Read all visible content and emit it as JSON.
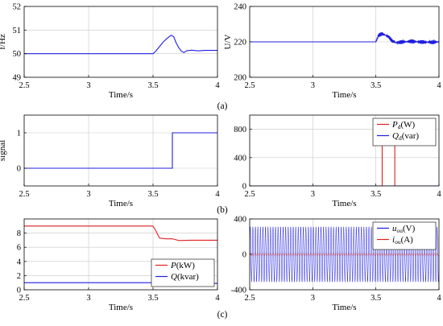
{
  "figure": {
    "subfig_labels": [
      "(a)",
      "(b)",
      "(c)"
    ]
  },
  "chart_data": [
    {
      "id": "a-left",
      "type": "line",
      "xlabel": "Time/s",
      "ylabel": "f/Hz",
      "xlim": [
        2.5,
        4
      ],
      "ylim": [
        49,
        52
      ],
      "xticks": [
        2.5,
        3,
        3.5,
        4
      ],
      "xtick_labels": [
        "2.5",
        "3",
        "3.5",
        "4"
      ],
      "yticks": [
        49,
        50,
        51,
        52
      ],
      "ytick_labels": [
        "49",
        "50",
        "51",
        "52"
      ],
      "grid": true,
      "legend": null,
      "series": [
        {
          "color": "#1f1fe0",
          "x": [
            2.5,
            3.0,
            3.5,
            3.52,
            3.55,
            3.58,
            3.61,
            3.64,
            3.66,
            3.68,
            3.7,
            3.72,
            3.74,
            3.76,
            3.8,
            3.85,
            3.9,
            4.0
          ],
          "y": [
            50.0,
            50.0,
            50.0,
            50.1,
            50.3,
            50.5,
            50.65,
            50.78,
            50.72,
            50.45,
            50.25,
            50.1,
            50.05,
            50.12,
            50.15,
            50.12,
            50.14,
            50.14
          ]
        }
      ]
    },
    {
      "id": "a-right",
      "type": "line",
      "xlabel": "Time/s",
      "ylabel": "U/V",
      "xlim": [
        2.5,
        4
      ],
      "ylim": [
        200,
        240
      ],
      "xticks": [
        2.5,
        3,
        3.5,
        4
      ],
      "xtick_labels": [
        "2.5",
        "3",
        "3.5",
        "4"
      ],
      "yticks": [
        200,
        220,
        240
      ],
      "ytick_labels": [
        "200",
        "220",
        "240"
      ],
      "grid": true,
      "legend": null,
      "series": [
        {
          "color": "#1f1fe0",
          "x": [
            2.5,
            3.0,
            3.5,
            3.52,
            3.55,
            3.6,
            3.63,
            3.66,
            3.7,
            3.8,
            3.9,
            4.0
          ],
          "y": [
            220,
            220,
            220,
            223.5,
            224.5,
            223,
            220.5,
            219.5,
            220,
            220.2,
            219.8,
            220
          ],
          "noise": 0.6
        }
      ]
    },
    {
      "id": "b-left",
      "type": "line",
      "xlabel": "Time/s",
      "ylabel": "signal",
      "xlim": [
        2.5,
        4
      ],
      "ylim": [
        -0.5,
        1.5
      ],
      "xticks": [
        2.5,
        3,
        3.5,
        4
      ],
      "xtick_labels": [
        "2.5",
        "3",
        "3.5",
        "4"
      ],
      "yticks": [
        0,
        1
      ],
      "ytick_labels": [
        "0",
        "1"
      ],
      "grid": true,
      "legend": null,
      "series": [
        {
          "color": "#1f1fe0",
          "x": [
            2.5,
            3.65,
            3.65,
            4.0
          ],
          "y": [
            0,
            0,
            1,
            1
          ]
        }
      ]
    },
    {
      "id": "b-right",
      "type": "line",
      "xlabel": "Time/s",
      "ylabel": "",
      "xlim": [
        2.5,
        4
      ],
      "ylim": [
        0,
        1000
      ],
      "xticks": [
        2.5,
        3,
        3.5,
        4
      ],
      "xtick_labels": [
        "2.5",
        "3",
        "3.5",
        "4"
      ],
      "yticks": [
        0,
        400,
        800
      ],
      "ytick_labels": [
        "0",
        "400",
        "800"
      ],
      "grid": true,
      "legend": {
        "position": "top-right",
        "entries": [
          {
            "label_main": "P",
            "label_sub": "d",
            "label_unit": "(W)",
            "color": "#e01f1f"
          },
          {
            "label_main": "Q",
            "label_sub": "d",
            "label_unit": "(var)",
            "color": "#1f1fe0"
          }
        ]
      },
      "series": [
        {
          "color": "#e01f1f",
          "x": [
            2.5,
            3.55,
            3.55,
            3.65,
            3.65,
            4.0
          ],
          "y": [
            0,
            0,
            800,
            800,
            0,
            0
          ]
        },
        {
          "color": "#1f1fe0",
          "x": [
            2.5,
            4.0
          ],
          "y": [
            0,
            0
          ]
        }
      ]
    },
    {
      "id": "c-left",
      "type": "line",
      "xlabel": "Time/s",
      "ylabel": "",
      "xlim": [
        2.5,
        4
      ],
      "ylim": [
        0,
        10
      ],
      "xticks": [
        2.5,
        3,
        3.5,
        4
      ],
      "xtick_labels": [
        "2.5",
        "3",
        "3.5",
        "4"
      ],
      "yticks": [
        0,
        2,
        4,
        6,
        8
      ],
      "ytick_labels": [
        "0",
        "2",
        "4",
        "6",
        "8"
      ],
      "grid": true,
      "legend": {
        "position": "bottom-right",
        "entries": [
          {
            "label_main": "P",
            "label_sub": "",
            "label_unit": "(kW)",
            "color": "#e01f1f"
          },
          {
            "label_main": "Q",
            "label_sub": "",
            "label_unit": "(kvar)",
            "color": "#1f1fe0"
          }
        ]
      },
      "series": [
        {
          "color": "#e01f1f",
          "x": [
            2.5,
            3.0,
            3.5,
            3.52,
            3.55,
            3.6,
            3.65,
            3.7,
            3.8,
            3.9,
            4.0
          ],
          "y": [
            9.0,
            9.0,
            9.0,
            8.4,
            7.3,
            7.2,
            7.2,
            6.95,
            7.0,
            7.0,
            7.0
          ]
        },
        {
          "color": "#1f1fe0",
          "x": [
            2.5,
            3.0,
            3.5,
            3.52,
            3.55,
            3.6,
            3.7,
            4.0
          ],
          "y": [
            1.0,
            1.0,
            1.0,
            1.1,
            1.2,
            1.0,
            0.9,
            0.9
          ]
        }
      ]
    },
    {
      "id": "c-right",
      "type": "line",
      "xlabel": "Time/s",
      "ylabel": "",
      "xlim": [
        2.5,
        4
      ],
      "ylim": [
        -400,
        400
      ],
      "xticks": [
        2.5,
        3,
        3.5,
        4
      ],
      "xtick_labels": [
        "2.5",
        "3",
        "3.5",
        "4"
      ],
      "yticks": [
        -400,
        0,
        400
      ],
      "ytick_labels": [
        "-400",
        "0",
        "400"
      ],
      "grid": true,
      "legend": {
        "position": "top-right",
        "entries": [
          {
            "label_main": "u",
            "label_sub": "ou",
            "label_unit": "(V)",
            "color": "#1f1fe0"
          },
          {
            "label_main": "i",
            "label_sub": "ou",
            "label_unit": "(A)",
            "color": "#e01f1f"
          }
        ]
      },
      "series": [
        {
          "color": "#1f1fe0",
          "function": "sine",
          "amplitude": 311,
          "frequency_hz": 50
        },
        {
          "color": "#e01f1f",
          "function": "sine",
          "amplitude": 12,
          "frequency_hz": 50
        }
      ]
    }
  ]
}
